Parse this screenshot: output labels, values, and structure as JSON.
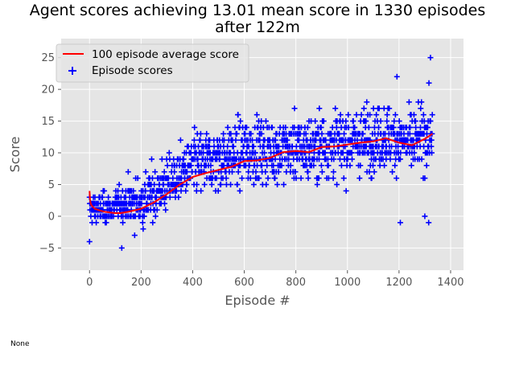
{
  "chart_data": {
    "type": "scatter",
    "title_line1": "Agent scores achieving 13.01 mean score in 1330 episodes",
    "title_line2": "after 122m",
    "xlabel": "Episode #",
    "ylabel": "Score",
    "xlim": [
      -110,
      1450
    ],
    "ylim": [
      -8.5,
      28
    ],
    "x_ticks": [
      0,
      200,
      400,
      600,
      800,
      1000,
      1200,
      1400
    ],
    "y_ticks": [
      -5,
      0,
      5,
      10,
      15,
      20,
      25
    ],
    "y_tick_labels": [
      "−5",
      "0",
      "5",
      "10",
      "15",
      "20",
      "25"
    ],
    "grid": true,
    "legend_position": "top-left",
    "series": [
      {
        "name": "100 episode average score",
        "kind": "line",
        "color": "#ff0000",
        "x": [
          0,
          2,
          5,
          10,
          20,
          40,
          60,
          80,
          100,
          120,
          150,
          200,
          250,
          300,
          350,
          400,
          450,
          500,
          550,
          600,
          650,
          700,
          750,
          800,
          850,
          900,
          950,
          1000,
          1050,
          1100,
          1150,
          1200,
          1250,
          1300,
          1330
        ],
        "y": [
          4.0,
          2.6,
          1.9,
          1.6,
          1.2,
          0.9,
          0.7,
          0.6,
          0.5,
          0.5,
          0.7,
          1.2,
          2.2,
          3.5,
          5.0,
          6.2,
          6.8,
          7.3,
          7.8,
          8.7,
          8.8,
          9.2,
          10.1,
          10.3,
          10.1,
          10.9,
          11.0,
          11.3,
          11.6,
          11.8,
          12.3,
          11.6,
          11.2,
          12.2,
          13.01
        ]
      },
      {
        "name": "Episode scores",
        "kind": "scatter",
        "color": "#0000ff",
        "marker": "plus",
        "n_points": 1330
      }
    ]
  },
  "footer": {
    "text": "None"
  }
}
